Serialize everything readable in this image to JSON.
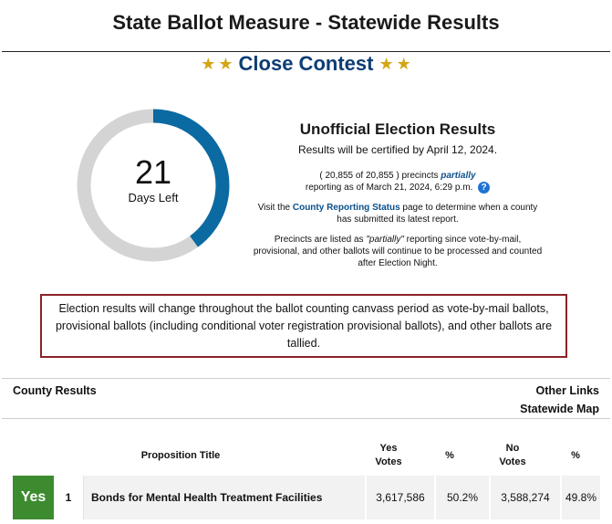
{
  "header": {
    "title": "State Ballot Measure - Statewide Results",
    "contest_label": "Close Contest"
  },
  "countdown": {
    "days": "21",
    "days_label": "Days Left",
    "elapsed_fraction": 0.6,
    "ring_color": "#0a6aa1",
    "track_color": "#d4d4d4"
  },
  "info": {
    "title": "Unofficial Election Results",
    "certified": "Results will be certified by April 12, 2024.",
    "precincts_prefix": "( 20,855 of 20,855 ) precincts",
    "precincts_status": "partially",
    "reporting_as_of": "reporting as of March 21, 2024, 6:29 p.m.",
    "visit_prefix": "Visit the",
    "visit_link": "County Reporting Status",
    "visit_suffix": "page to determine when a county has submitted its latest report.",
    "partial_prefix": "Precincts are listed as",
    "partial_quote": "\"partially\"",
    "partial_suffix": "reporting since vote-by-mail, provisional, and other ballots will continue to be processed and counted after Election Night."
  },
  "notice": {
    "text": "Election results will change throughout the ballot counting canvass period as vote-by-mail ballots, provisional ballots (including conditional voter registration provisional ballots), and other ballots are tallied."
  },
  "links": {
    "county_results": "County Results",
    "other_links": "Other Links",
    "statewide_map": "Statewide Map"
  },
  "table": {
    "headers": {
      "title": "Proposition Title",
      "yes_votes_1": "Yes",
      "yes_votes_2": "Votes",
      "yes_pct": "%",
      "no_votes_1": "No",
      "no_votes_2": "Votes",
      "no_pct": "%"
    },
    "rows": [
      {
        "result": "Yes",
        "number": "1",
        "title": "Bonds for Mental Health Treatment Facilities",
        "yes_votes": "3,617,586",
        "yes_pct": "50.2%",
        "no_votes": "3,588,274",
        "no_pct": "49.8%"
      }
    ]
  },
  "colors": {
    "accent_navy": "#0b3d74",
    "notice_border": "#8b2227",
    "yes_green": "#3d8b2f",
    "star_gold": "#d4a514"
  }
}
